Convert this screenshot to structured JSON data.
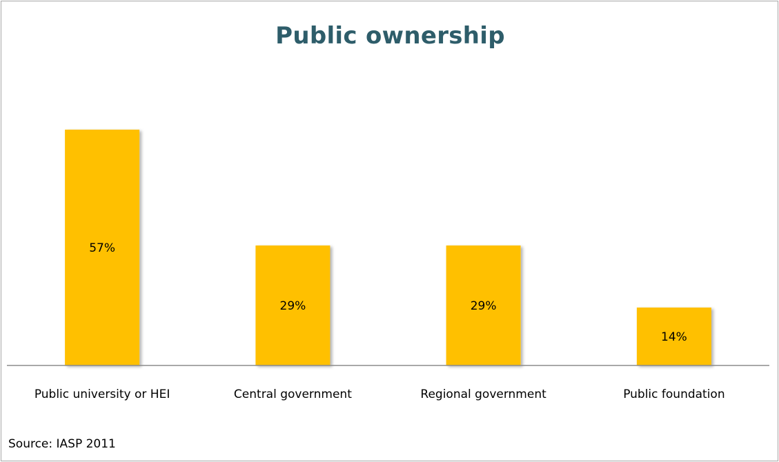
{
  "chart_data": {
    "type": "bar",
    "title": "Public ownership",
    "categories": [
      "Public university or HEI",
      "Central government",
      "Regional government",
      "Public foundation"
    ],
    "values": [
      57,
      29,
      29,
      14
    ],
    "data_labels": [
      "57%",
      "29%",
      "29%",
      "14%"
    ],
    "xlabel": "",
    "ylabel": "",
    "ylim": [
      0,
      60
    ],
    "grid": false,
    "legend": "none",
    "bar_color": "#ffc000",
    "source": "Source: IASP 2011"
  }
}
